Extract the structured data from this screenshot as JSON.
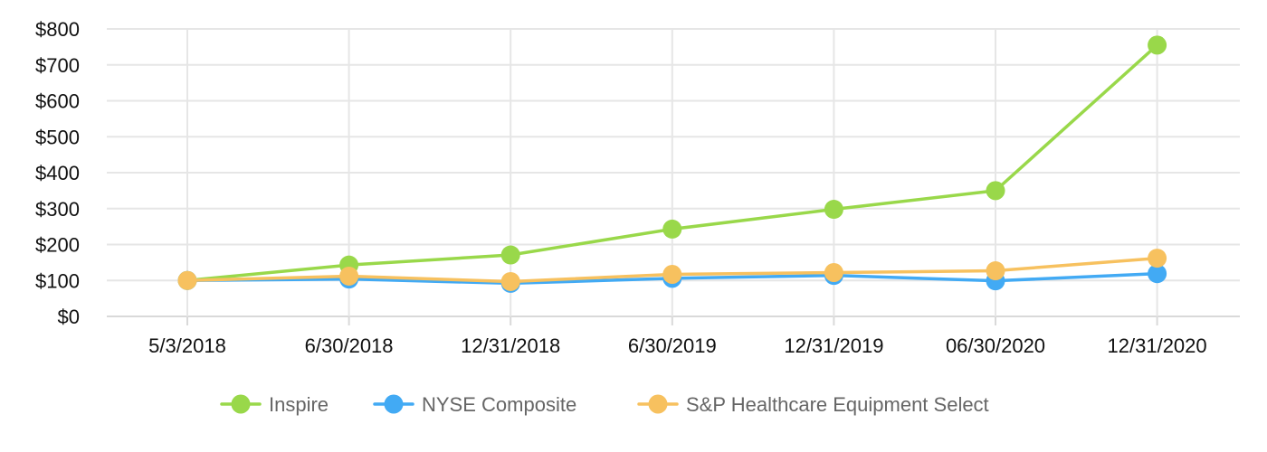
{
  "chart_data": {
    "type": "line",
    "categories": [
      "5/3/2018",
      "6/30/2018",
      "12/31/2018",
      "6/30/2019",
      "12/31/2019",
      "06/30/2020",
      "12/31/2020"
    ],
    "y_ticks": [
      "$0",
      "$100",
      "$200",
      "$300",
      "$400",
      "$500",
      "$600",
      "$700",
      "$800"
    ],
    "ylim": [
      0,
      800
    ],
    "grid": true,
    "legend_position": "bottom",
    "series": [
      {
        "name": "Inspire",
        "color": "#99d84a",
        "values": [
          100,
          143,
          171,
          243,
          298,
          350,
          755
        ]
      },
      {
        "name": "NYSE Composite",
        "color": "#42aaf4",
        "values": [
          100,
          104,
          92,
          106,
          114,
          99,
          119
        ]
      },
      {
        "name": "S&P Healthcare Equipment Select",
        "color": "#f7c15f",
        "values": [
          100,
          112,
          97,
          117,
          122,
          127,
          162
        ]
      }
    ]
  }
}
